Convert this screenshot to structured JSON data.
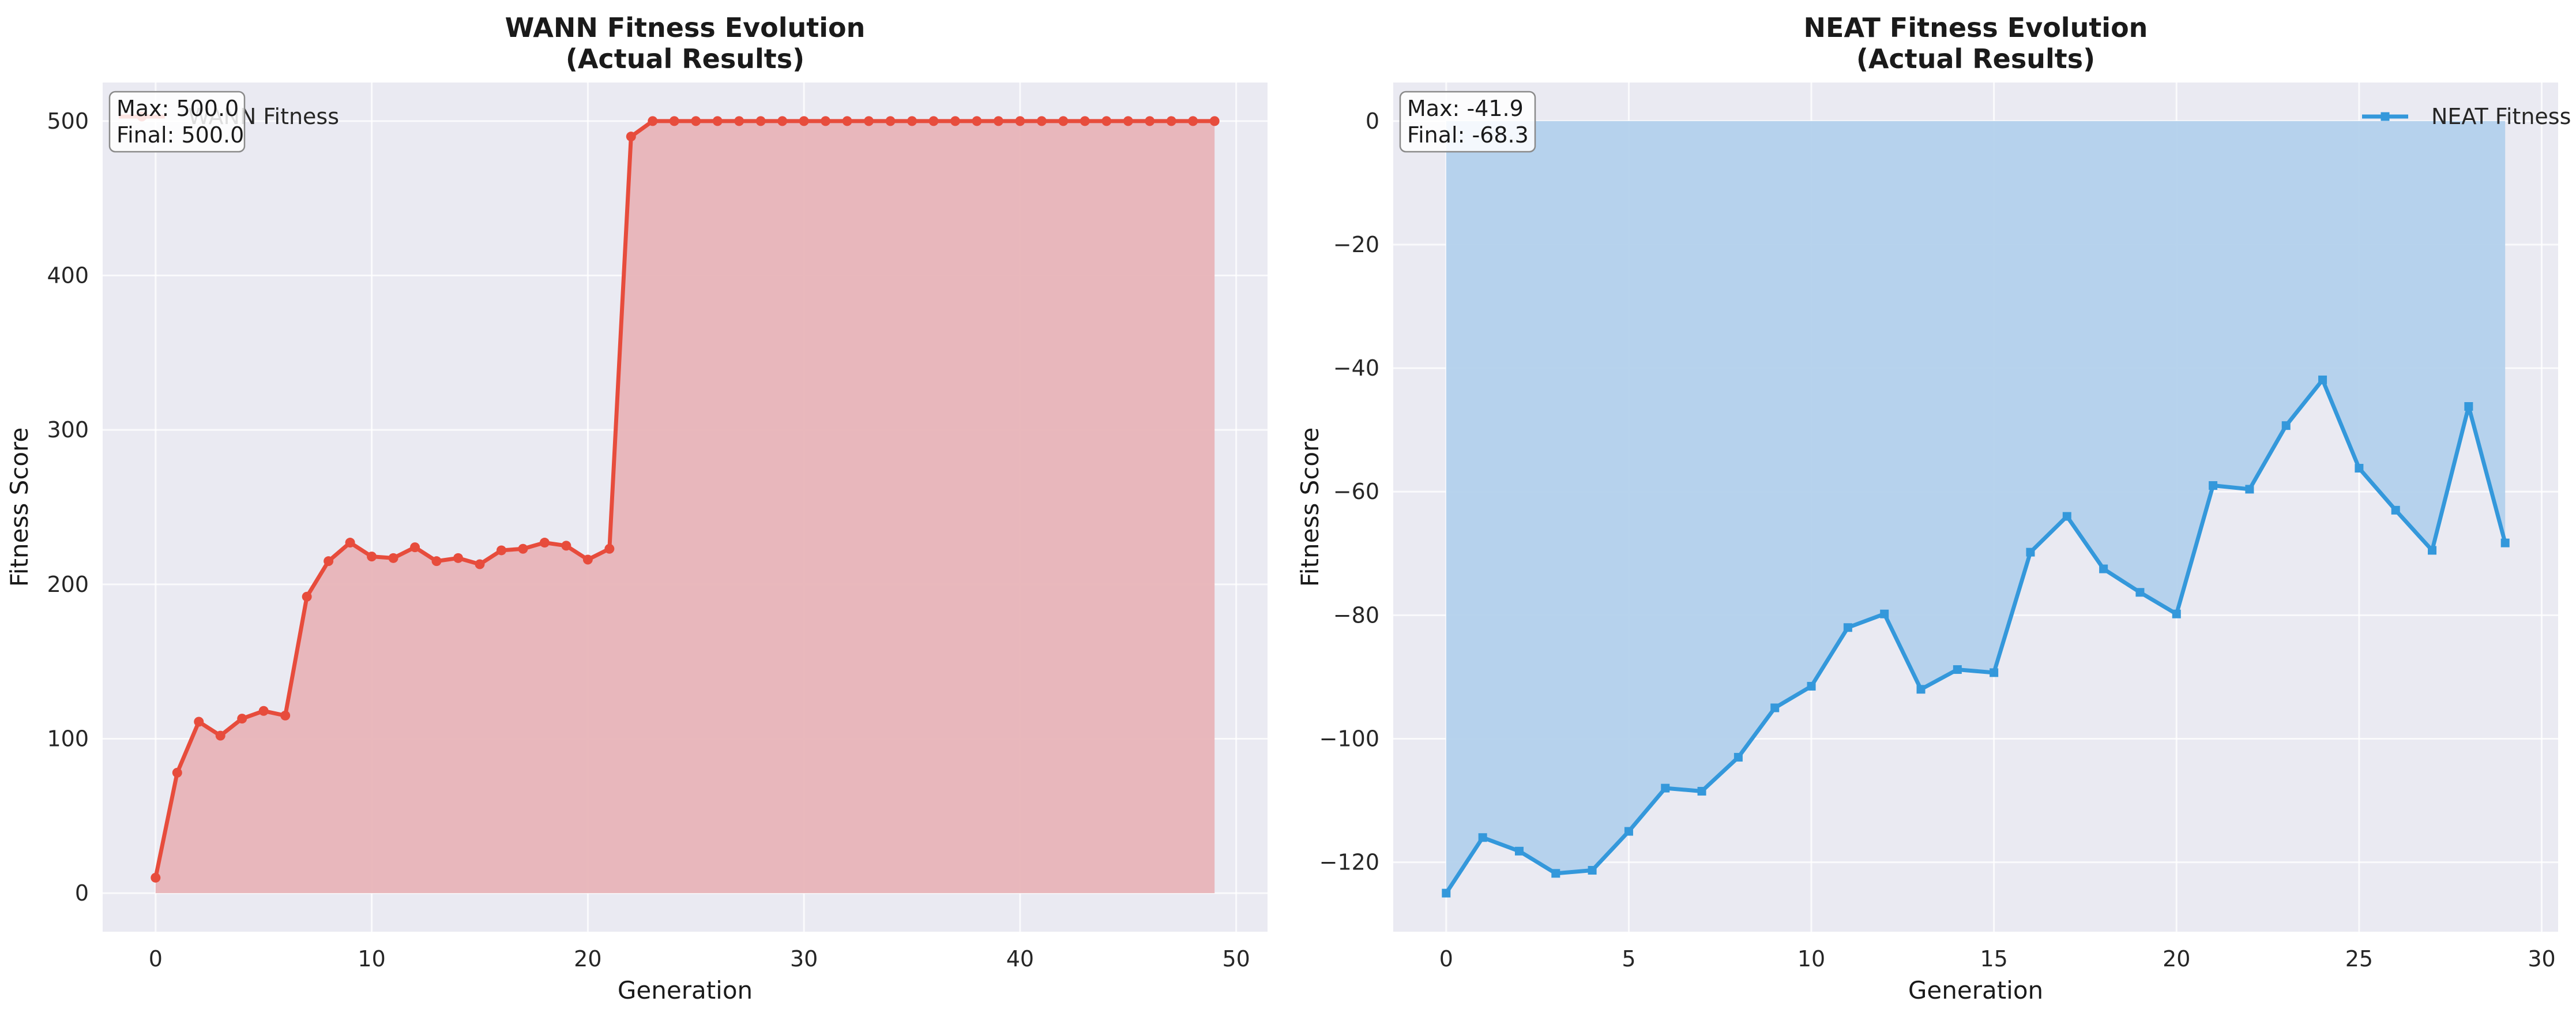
{
  "chart_data": [
    {
      "type": "line",
      "title": "WANN Fitness Evolution",
      "subtitle": "(Actual Results)",
      "xlabel": "Generation",
      "ylabel": "Fitness Score",
      "xlim": [
        -2.45,
        51.45
      ],
      "ylim": [
        -25,
        525
      ],
      "xticks": [
        0,
        10,
        20,
        30,
        40,
        50
      ],
      "yticks": [
        0,
        100,
        200,
        300,
        400,
        500
      ],
      "grid": true,
      "legend_position": "top-left",
      "fill_area": true,
      "marker": "circle",
      "series": [
        {
          "name": "WANN Fitness",
          "color": "#e74c3c",
          "fill_color": "#e8b4b8",
          "x": [
            0,
            1,
            2,
            3,
            4,
            5,
            6,
            7,
            8,
            9,
            10,
            11,
            12,
            13,
            14,
            15,
            16,
            17,
            18,
            19,
            20,
            21,
            22,
            23,
            24,
            25,
            26,
            27,
            28,
            29,
            30,
            31,
            32,
            33,
            34,
            35,
            36,
            37,
            38,
            39,
            40,
            41,
            42,
            43,
            44,
            45,
            46,
            47,
            48,
            49
          ],
          "values": [
            10,
            78,
            111,
            102,
            113,
            118,
            115,
            192,
            215,
            227,
            218,
            217,
            224,
            215,
            217,
            213,
            222,
            223,
            227,
            225,
            216,
            223,
            490,
            500,
            500,
            500,
            500,
            500,
            500,
            500,
            500,
            500,
            500,
            500,
            500,
            500,
            500,
            500,
            500,
            500,
            500,
            500,
            500,
            500,
            500,
            500,
            500,
            500,
            500,
            500
          ]
        }
      ],
      "annotation": {
        "line1": "Max: 500.0",
        "line2": "Final: 500.0"
      }
    },
    {
      "type": "line",
      "title": "NEAT Fitness Evolution",
      "subtitle": "(Actual Results)",
      "xlabel": "Generation",
      "ylabel": "Fitness Score",
      "xlim": [
        -1.45,
        30.45
      ],
      "ylim": [
        -131.25,
        6.25
      ],
      "xticks": [
        0,
        5,
        10,
        15,
        20,
        25,
        30
      ],
      "yticks": [
        0,
        -20,
        -40,
        -60,
        -80,
        -100,
        -120
      ],
      "grid": true,
      "legend_position": "top-right",
      "fill_area": true,
      "marker": "square",
      "series": [
        {
          "name": "NEAT Fitness",
          "color": "#3498db",
          "fill_color": "#b3d1ec",
          "x": [
            0,
            1,
            2,
            3,
            4,
            5,
            6,
            7,
            8,
            9,
            10,
            11,
            12,
            13,
            14,
            15,
            16,
            17,
            18,
            19,
            20,
            21,
            22,
            23,
            24,
            25,
            26,
            27,
            28,
            29
          ],
          "values": [
            -125,
            -116,
            -118.2,
            -121.8,
            -121.3,
            -115,
            -108,
            -108.5,
            -103,
            -95,
            -91.5,
            -82,
            -79.8,
            -92,
            -88.8,
            -89.3,
            -69.8,
            -64,
            -72.5,
            -76.3,
            -79.8,
            -59,
            -59.6,
            -49.3,
            -41.9,
            -56.2,
            -63,
            -69.5,
            -46.2,
            -68.3
          ]
        }
      ],
      "annotation": {
        "line1": "Max: -41.9",
        "line2": "Final: -68.3"
      }
    }
  ]
}
